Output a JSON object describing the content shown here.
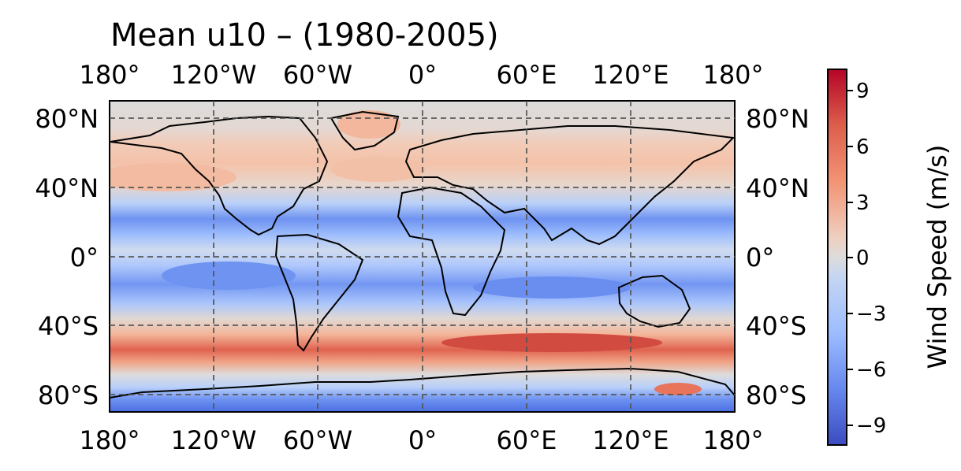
{
  "title": "Mean u10 – (1980-2005)",
  "map": {
    "projection": "PlateCarree",
    "lon_ticks": [
      "180°",
      "120°W",
      "60°W",
      "0°",
      "60°E",
      "120°E",
      "180°"
    ],
    "lat_ticks": [
      "80°N",
      "40°N",
      "0°",
      "40°S",
      "80°S"
    ],
    "gridlines": true,
    "coastlines": true
  },
  "colorbar": {
    "label": "Wind Speed (m/s)",
    "colormap": "coolwarm",
    "range": [
      -10,
      10
    ],
    "ticks": [
      "9",
      "6",
      "3",
      "0",
      "−3",
      "−6",
      "−9"
    ],
    "levels": 20
  },
  "chart_data": {
    "type": "heatmap",
    "title": "Mean u10 – (1980-2005)",
    "x": "longitude",
    "y": "latitude",
    "xlim": [
      -180,
      180
    ],
    "ylim": [
      -90,
      90
    ],
    "colorbar_label": "Wind Speed (m/s)",
    "zonal_bands_approx": [
      {
        "lat_range": [
          60,
          90
        ],
        "u10": 0.5
      },
      {
        "lat_range": [
          30,
          60
        ],
        "u10": 4
      },
      {
        "lat_range": [
          5,
          30
        ],
        "u10": -6
      },
      {
        "lat_range": [
          -5,
          5
        ],
        "u10": -2
      },
      {
        "lat_range": [
          -30,
          -5
        ],
        "u10": -6
      },
      {
        "lat_range": [
          -40,
          -30
        ],
        "u10": 1
      },
      {
        "lat_range": [
          -65,
          -40
        ],
        "u10": 8
      },
      {
        "lat_range": [
          -90,
          -65
        ],
        "u10": -5
      }
    ]
  }
}
